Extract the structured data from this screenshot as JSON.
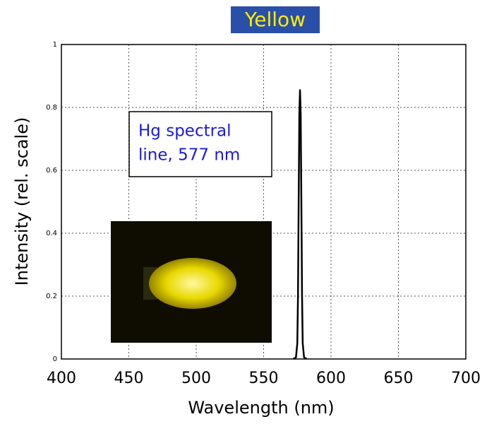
{
  "chart_data": {
    "type": "line",
    "title": "Yellow",
    "x_label": "Wavelength (nm)",
    "y_label": "Intensity (rel. scale)",
    "annotation_lines": [
      "Hg spectral",
      "line, 577 nm"
    ],
    "x": [
      572,
      574,
      575,
      575.5,
      576,
      576.5,
      577,
      577.5,
      578,
      578.5,
      579,
      580,
      582
    ],
    "values": [
      0,
      0.005,
      0.05,
      0.2,
      0.5,
      0.78,
      0.855,
      0.78,
      0.5,
      0.2,
      0.05,
      0.005,
      0
    ],
    "color": "#000000",
    "xlim": [
      400,
      700
    ],
    "xticks": [
      400,
      450,
      500,
      550,
      600,
      650,
      700
    ],
    "ylim": [
      0,
      1
    ],
    "yticks": [
      0,
      0.2,
      0.4,
      0.6,
      0.8,
      1
    ],
    "grid": true
  }
}
